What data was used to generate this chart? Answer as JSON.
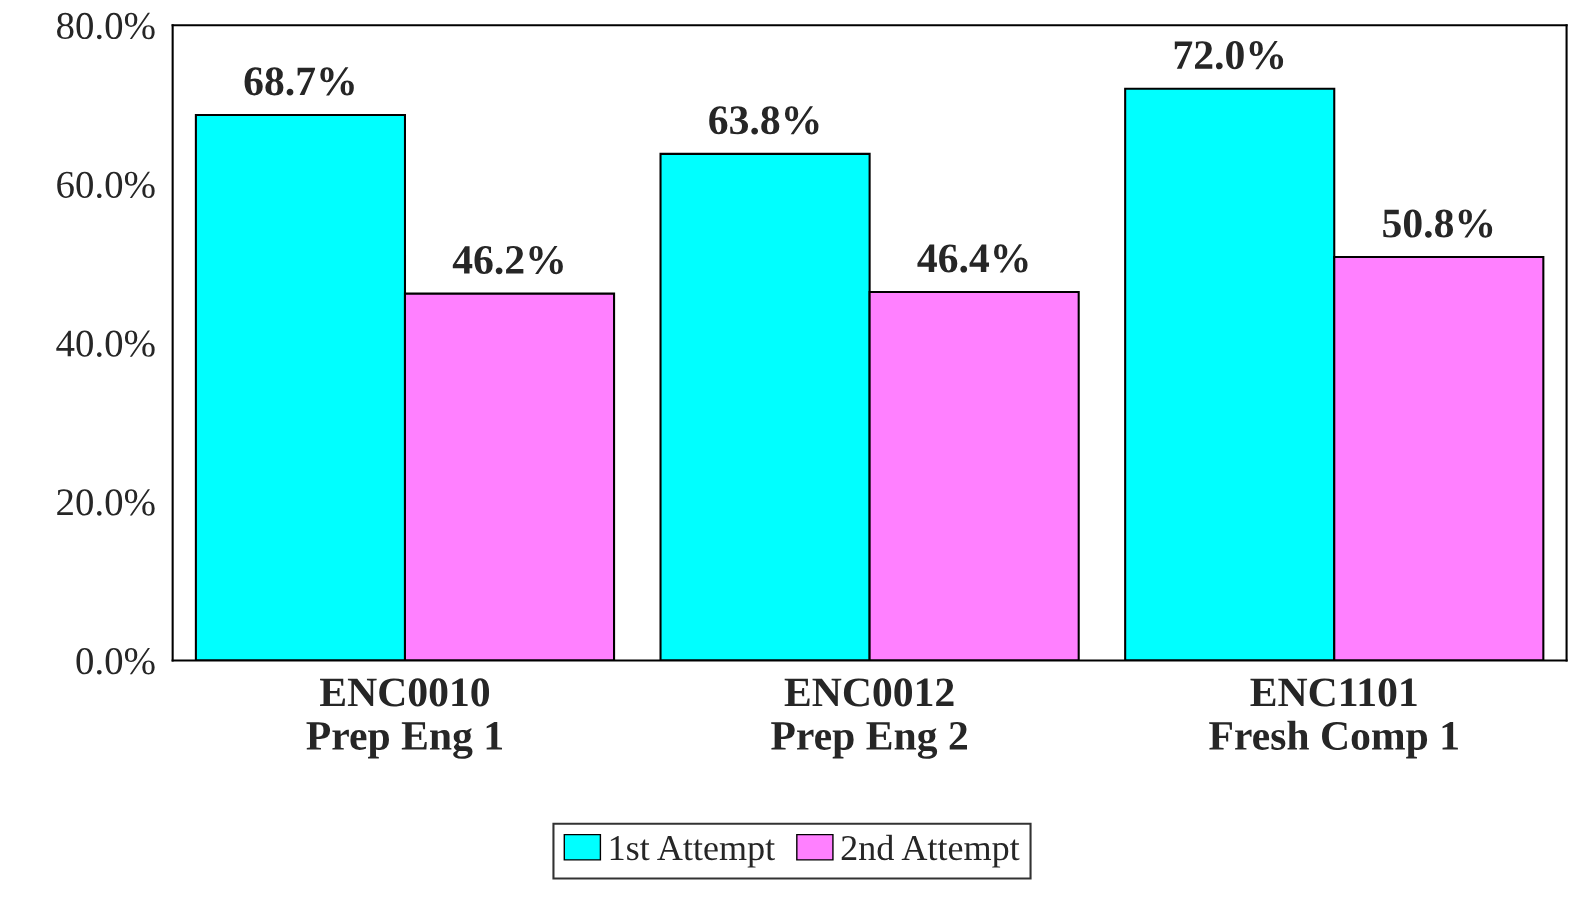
{
  "chart_data": {
    "type": "bar",
    "categories": [
      "ENC0010\nPrep Eng 1",
      "ENC0012\nPrep Eng 2",
      "ENC1101\nFresh Comp 1"
    ],
    "series": [
      {
        "name": "1st Attempt",
        "color": "#00ffff",
        "values": [
          68.7,
          63.8,
          72.0
        ],
        "value_labels": [
          "68.7%",
          "63.8%",
          "72.0%"
        ]
      },
      {
        "name": "2nd Attempt",
        "color": "#ff80ff",
        "values": [
          46.2,
          46.4,
          50.8
        ],
        "value_labels": [
          "46.2%",
          "46.4%",
          "50.8%"
        ]
      }
    ],
    "ylim": [
      0,
      80
    ],
    "yticks": [
      {
        "value": 0,
        "label": "0.0%"
      },
      {
        "value": 20,
        "label": "20.0%"
      },
      {
        "value": 40,
        "label": "40.0%"
      },
      {
        "value": 60,
        "label": "60.0%"
      },
      {
        "value": 80,
        "label": "80.0%"
      }
    ],
    "grid": false,
    "legend": "bottom"
  }
}
